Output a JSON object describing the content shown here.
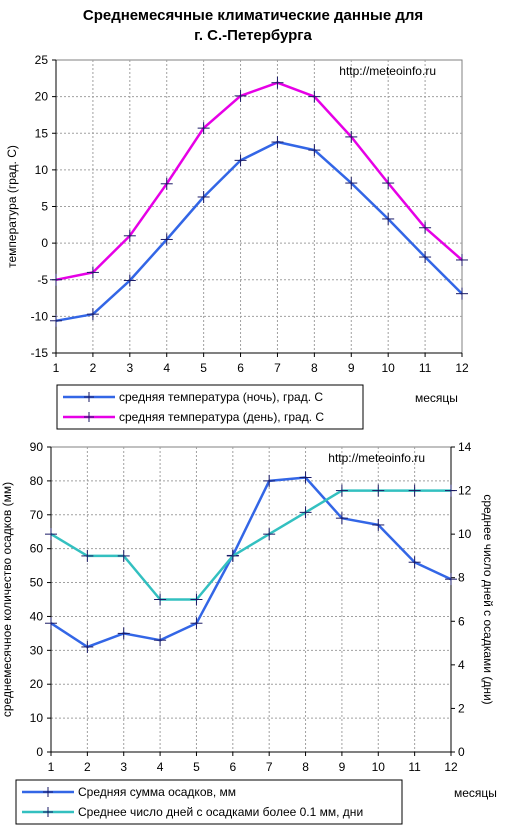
{
  "title_lines": [
    "Среднемесячные климатические данные для",
    "г.  С.-Петербурга"
  ],
  "chart_data": [
    {
      "type": "line",
      "x": [
        1,
        2,
        3,
        4,
        5,
        6,
        7,
        8,
        9,
        10,
        11,
        12
      ],
      "xlim": [
        1,
        12
      ],
      "ylim": [
        -15,
        25
      ],
      "yticks": [
        -15,
        -10,
        -5,
        0,
        5,
        10,
        15,
        20,
        25
      ],
      "ylabel": "температура (град. С)",
      "xlabel": "месяцы",
      "watermark": "http://meteoinfo.ru",
      "grid": true,
      "legend_position": "bottom",
      "series": [
        {
          "name": "средняя температура (ночь), град. С",
          "color": "#3366e6",
          "values": [
            -10.6,
            -9.7,
            -5.1,
            0.5,
            6.3,
            11.3,
            13.8,
            12.7,
            8.2,
            3.3,
            -1.9,
            -6.9
          ]
        },
        {
          "name": "средняя температура (день), град. С",
          "color": "#e600e6",
          "values": [
            -5.0,
            -4.0,
            1.0,
            8.1,
            15.7,
            20.1,
            21.9,
            20.0,
            14.5,
            8.2,
            2.1,
            -2.3
          ]
        }
      ]
    },
    {
      "type": "line",
      "x": [
        1,
        2,
        3,
        4,
        5,
        6,
        7,
        8,
        9,
        10,
        11,
        12
      ],
      "xlim": [
        1,
        12
      ],
      "ylim": [
        0,
        90
      ],
      "yticks": [
        0,
        10,
        20,
        30,
        40,
        50,
        60,
        70,
        80,
        90
      ],
      "y2lim": [
        0,
        14
      ],
      "y2ticks": [
        0,
        2,
        4,
        6,
        8,
        10,
        12,
        14
      ],
      "ylabel": "среднемесячное количество осадков (мм)",
      "y2label": "среднее число дней с осадками (дни)",
      "xlabel": "месяцы",
      "watermark": "http://meteoinfo.ru",
      "grid": true,
      "legend_position": "bottom",
      "series": [
        {
          "name": "Средняя сумма осадков, мм",
          "color": "#3366e6",
          "axis": "left",
          "values": [
            38,
            31,
            35,
            33,
            38,
            58,
            80,
            81,
            69,
            67,
            56,
            51
          ]
        },
        {
          "name": "Среднее число дней с  осадками более 0.1 мм, дни",
          "color": "#33c0c0",
          "axis": "right",
          "values": [
            10,
            9,
            9,
            7,
            7,
            9,
            10,
            11,
            12,
            12,
            12,
            12
          ]
        }
      ]
    }
  ]
}
